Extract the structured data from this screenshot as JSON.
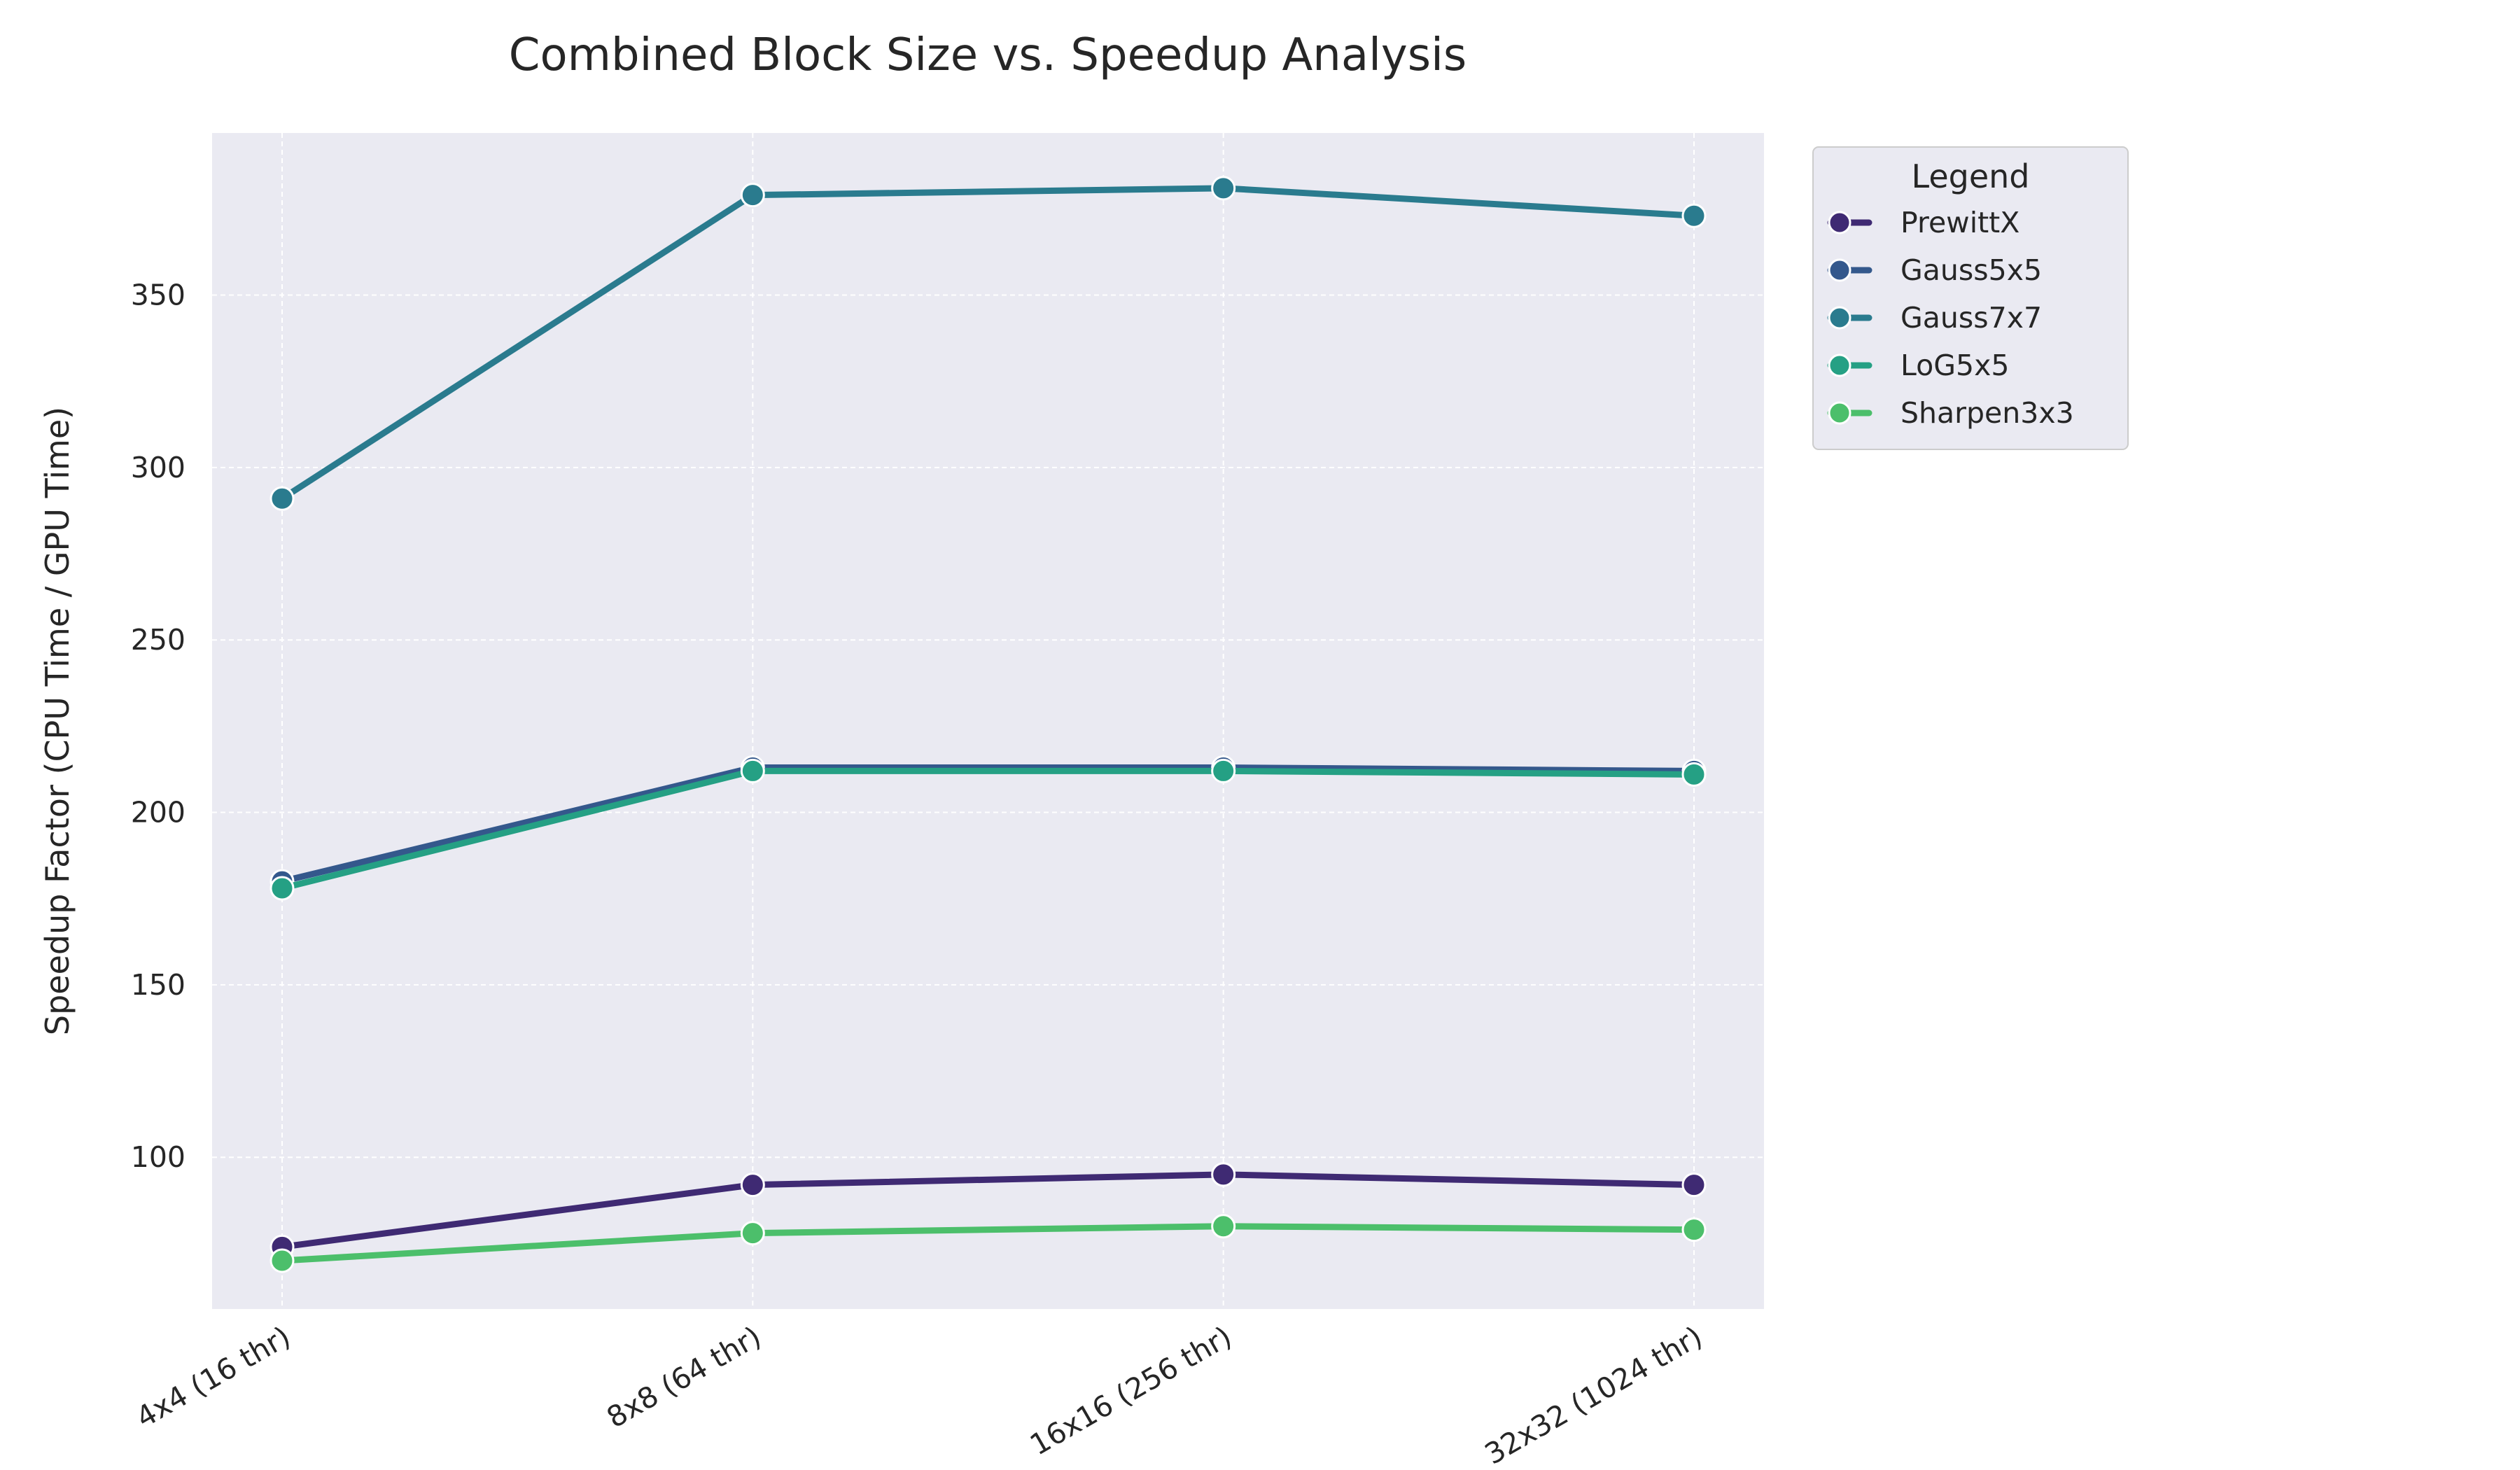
{
  "chart_data": {
    "type": "line",
    "title": "Combined Block Size vs. Speedup Analysis",
    "xlabel": "",
    "ylabel": "Speedup Factor (CPU Time / GPU Time)",
    "categories": [
      "4x4 (16 thr)",
      "8x8 (64 thr)",
      "16x16 (256 thr)",
      "32x32 (1024 thr)"
    ],
    "ylim": [
      56,
      397
    ],
    "yticks": [
      100,
      150,
      200,
      250,
      300,
      350
    ],
    "grid": true,
    "legend": {
      "title": "Legend",
      "placement": "outside-upper-right"
    },
    "series": [
      {
        "name": "PrewittX",
        "color": "#3f2a73",
        "values": [
          74,
          92,
          95,
          92
        ]
      },
      {
        "name": "Gauss5x5",
        "color": "#34588c",
        "values": [
          180,
          213,
          213,
          212
        ]
      },
      {
        "name": "Gauss7x7",
        "color": "#2a7b8e",
        "values": [
          291,
          379,
          381,
          373
        ]
      },
      {
        "name": "LoG5x5",
        "color": "#25a084",
        "values": [
          178,
          212,
          212,
          211
        ]
      },
      {
        "name": "Sharpen3x3",
        "color": "#4cbf6b",
        "values": [
          70,
          78,
          80,
          79
        ]
      }
    ]
  }
}
